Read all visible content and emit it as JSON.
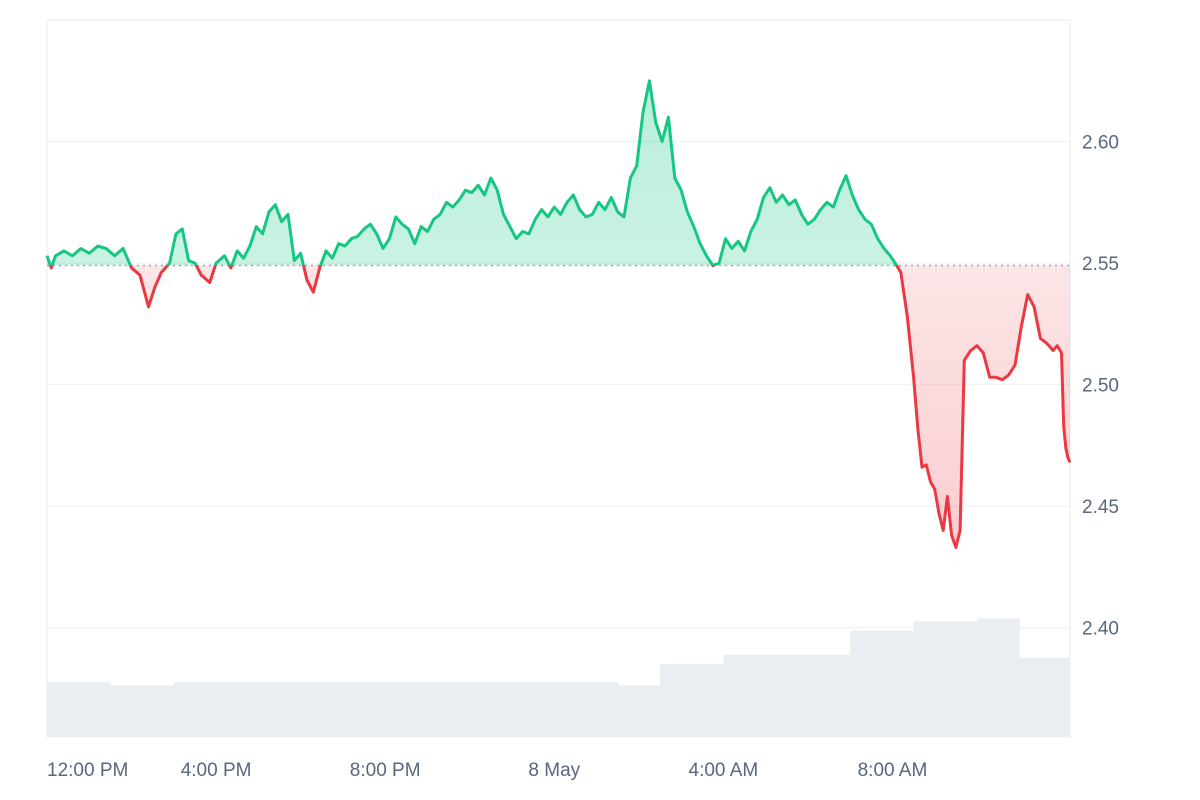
{
  "chart_data": {
    "type": "area",
    "y_axis": {
      "position": "right",
      "ylim": [
        2.355,
        2.65
      ],
      "ticks": [
        "2.40",
        "2.45",
        "2.50",
        "2.55",
        "2.60"
      ]
    },
    "x_axis": {
      "ticks": [
        {
          "label": "12:00 PM",
          "t": 0
        },
        {
          "label": "4:00 PM",
          "t": 4
        },
        {
          "label": "8:00 PM",
          "t": 8
        },
        {
          "label": "8 May",
          "t": 12
        },
        {
          "label": "4:00 AM",
          "t": 16
        },
        {
          "label": "8:00 AM",
          "t": 20
        }
      ],
      "range": [
        0,
        24.2
      ]
    },
    "baseline": 2.549,
    "colors": {
      "up_line": "#16c784",
      "down_line": "#ea3943",
      "up_fill": "#16c784",
      "down_fill": "#ea3943",
      "grid": "#eff2f5",
      "volume": "#eaeef2",
      "baseline_dots": "#9aa4b2"
    },
    "grid": true,
    "series": [
      {
        "values": [
          [
            0.0,
            2.553
          ],
          [
            0.1,
            2.548
          ],
          [
            0.2,
            2.553
          ],
          [
            0.4,
            2.555
          ],
          [
            0.6,
            2.553
          ],
          [
            0.8,
            2.556
          ],
          [
            1.0,
            2.554
          ],
          [
            1.2,
            2.557
          ],
          [
            1.4,
            2.556
          ],
          [
            1.6,
            2.553
          ],
          [
            1.8,
            2.556
          ],
          [
            2.0,
            2.548
          ],
          [
            2.2,
            2.545
          ],
          [
            2.4,
            2.532
          ],
          [
            2.55,
            2.54
          ],
          [
            2.7,
            2.546
          ],
          [
            2.9,
            2.55
          ],
          [
            3.05,
            2.562
          ],
          [
            3.2,
            2.564
          ],
          [
            3.35,
            2.551
          ],
          [
            3.5,
            2.55
          ],
          [
            3.65,
            2.545
          ],
          [
            3.85,
            2.542
          ],
          [
            4.0,
            2.55
          ],
          [
            4.2,
            2.553
          ],
          [
            4.35,
            2.548
          ],
          [
            4.5,
            2.555
          ],
          [
            4.65,
            2.552
          ],
          [
            4.8,
            2.557
          ],
          [
            4.95,
            2.565
          ],
          [
            5.1,
            2.562
          ],
          [
            5.25,
            2.571
          ],
          [
            5.4,
            2.574
          ],
          [
            5.55,
            2.567
          ],
          [
            5.7,
            2.57
          ],
          [
            5.85,
            2.551
          ],
          [
            6.0,
            2.554
          ],
          [
            6.15,
            2.543
          ],
          [
            6.3,
            2.538
          ],
          [
            6.45,
            2.548
          ],
          [
            6.6,
            2.555
          ],
          [
            6.75,
            2.552
          ],
          [
            6.9,
            2.558
          ],
          [
            7.05,
            2.557
          ],
          [
            7.2,
            2.56
          ],
          [
            7.35,
            2.561
          ],
          [
            7.5,
            2.564
          ],
          [
            7.65,
            2.566
          ],
          [
            7.8,
            2.562
          ],
          [
            7.95,
            2.556
          ],
          [
            8.1,
            2.56
          ],
          [
            8.25,
            2.569
          ],
          [
            8.4,
            2.566
          ],
          [
            8.55,
            2.564
          ],
          [
            8.7,
            2.558
          ],
          [
            8.85,
            2.565
          ],
          [
            9.0,
            2.563
          ],
          [
            9.15,
            2.568
          ],
          [
            9.3,
            2.57
          ],
          [
            9.45,
            2.575
          ],
          [
            9.6,
            2.573
          ],
          [
            9.75,
            2.576
          ],
          [
            9.9,
            2.58
          ],
          [
            10.05,
            2.579
          ],
          [
            10.2,
            2.582
          ],
          [
            10.35,
            2.578
          ],
          [
            10.5,
            2.585
          ],
          [
            10.65,
            2.58
          ],
          [
            10.8,
            2.57
          ],
          [
            10.95,
            2.565
          ],
          [
            11.1,
            2.56
          ],
          [
            11.25,
            2.563
          ],
          [
            11.4,
            2.562
          ],
          [
            11.55,
            2.568
          ],
          [
            11.7,
            2.572
          ],
          [
            11.85,
            2.569
          ],
          [
            12.0,
            2.573
          ],
          [
            12.15,
            2.57
          ],
          [
            12.3,
            2.575
          ],
          [
            12.45,
            2.578
          ],
          [
            12.6,
            2.572
          ],
          [
            12.75,
            2.569
          ],
          [
            12.9,
            2.57
          ],
          [
            13.05,
            2.575
          ],
          [
            13.2,
            2.572
          ],
          [
            13.35,
            2.577
          ],
          [
            13.5,
            2.571
          ],
          [
            13.65,
            2.569
          ],
          [
            13.8,
            2.585
          ],
          [
            13.95,
            2.59
          ],
          [
            14.1,
            2.612
          ],
          [
            14.25,
            2.625
          ],
          [
            14.4,
            2.608
          ],
          [
            14.55,
            2.6
          ],
          [
            14.7,
            2.61
          ],
          [
            14.85,
            2.585
          ],
          [
            15.0,
            2.58
          ],
          [
            15.15,
            2.571
          ],
          [
            15.3,
            2.565
          ],
          [
            15.45,
            2.558
          ],
          [
            15.6,
            2.553
          ],
          [
            15.75,
            2.549
          ],
          [
            15.9,
            2.55
          ],
          [
            16.05,
            2.56
          ],
          [
            16.2,
            2.556
          ],
          [
            16.35,
            2.559
          ],
          [
            16.5,
            2.555
          ],
          [
            16.65,
            2.563
          ],
          [
            16.8,
            2.568
          ],
          [
            16.95,
            2.577
          ],
          [
            17.1,
            2.581
          ],
          [
            17.25,
            2.575
          ],
          [
            17.4,
            2.578
          ],
          [
            17.55,
            2.574
          ],
          [
            17.7,
            2.576
          ],
          [
            17.85,
            2.57
          ],
          [
            18.0,
            2.566
          ],
          [
            18.15,
            2.568
          ],
          [
            18.3,
            2.572
          ],
          [
            18.45,
            2.575
          ],
          [
            18.6,
            2.573
          ],
          [
            18.75,
            2.58
          ],
          [
            18.9,
            2.586
          ],
          [
            19.05,
            2.578
          ],
          [
            19.2,
            2.572
          ],
          [
            19.35,
            2.568
          ],
          [
            19.5,
            2.566
          ],
          [
            19.65,
            2.56
          ],
          [
            19.8,
            2.556
          ],
          [
            19.95,
            2.553
          ],
          [
            20.1,
            2.549
          ],
          [
            20.2,
            2.546
          ],
          [
            20.35,
            2.528
          ],
          [
            20.5,
            2.503
          ],
          [
            20.6,
            2.482
          ],
          [
            20.7,
            2.466
          ],
          [
            20.8,
            2.467
          ],
          [
            20.9,
            2.46
          ],
          [
            21.0,
            2.457
          ],
          [
            21.1,
            2.447
          ],
          [
            21.2,
            2.44
          ],
          [
            21.3,
            2.454
          ],
          [
            21.4,
            2.438
          ],
          [
            21.5,
            2.433
          ],
          [
            21.6,
            2.44
          ],
          [
            21.7,
            2.51
          ],
          [
            21.85,
            2.514
          ],
          [
            22.0,
            2.516
          ],
          [
            22.15,
            2.513
          ],
          [
            22.3,
            2.503
          ],
          [
            22.45,
            2.503
          ],
          [
            22.6,
            2.502
          ],
          [
            22.75,
            2.504
          ],
          [
            22.9,
            2.508
          ],
          [
            23.05,
            2.524
          ],
          [
            23.2,
            2.537
          ],
          [
            23.35,
            2.532
          ],
          [
            23.5,
            2.519
          ],
          [
            23.65,
            2.517
          ],
          [
            23.8,
            2.514
          ],
          [
            23.9,
            2.516
          ],
          [
            24.0,
            2.513
          ],
          [
            24.05,
            2.483
          ],
          [
            24.1,
            2.474
          ],
          [
            24.15,
            2.47
          ],
          [
            24.2,
            2.468
          ]
        ]
      }
    ],
    "volume": {
      "x": [
        0,
        1.5,
        3,
        4.5,
        6,
        7.5,
        9,
        10.5,
        12,
        13.5,
        14.5,
        16,
        17.5,
        19,
        20.5,
        22,
        23,
        24.2
      ],
      "values": [
        0.18,
        0.17,
        0.18,
        0.18,
        0.18,
        0.18,
        0.18,
        0.18,
        0.18,
        0.17,
        0.24,
        0.27,
        0.27,
        0.35,
        0.38,
        0.39,
        0.26,
        0.22
      ]
    }
  }
}
